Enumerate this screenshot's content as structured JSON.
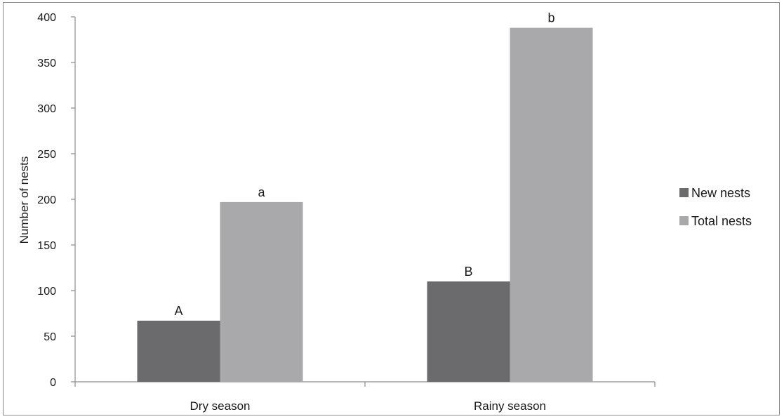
{
  "chart_data": {
    "type": "bar",
    "title": "",
    "xlabel": "",
    "ylabel": "Number of nests",
    "ylim": [
      0,
      400
    ],
    "yticks": [
      0,
      50,
      100,
      150,
      200,
      250,
      300,
      350,
      400
    ],
    "categories": [
      "Dry season",
      "Rainy season"
    ],
    "series": [
      {
        "name": "New nests",
        "color": "#6b6b6e",
        "values": [
          67,
          110
        ],
        "labels": [
          "A",
          "B"
        ]
      },
      {
        "name": "Total nests",
        "color": "#a9a9ab",
        "values": [
          197,
          388
        ],
        "labels": [
          "a",
          "b"
        ]
      }
    ],
    "grid": false,
    "legend_position": "right"
  }
}
